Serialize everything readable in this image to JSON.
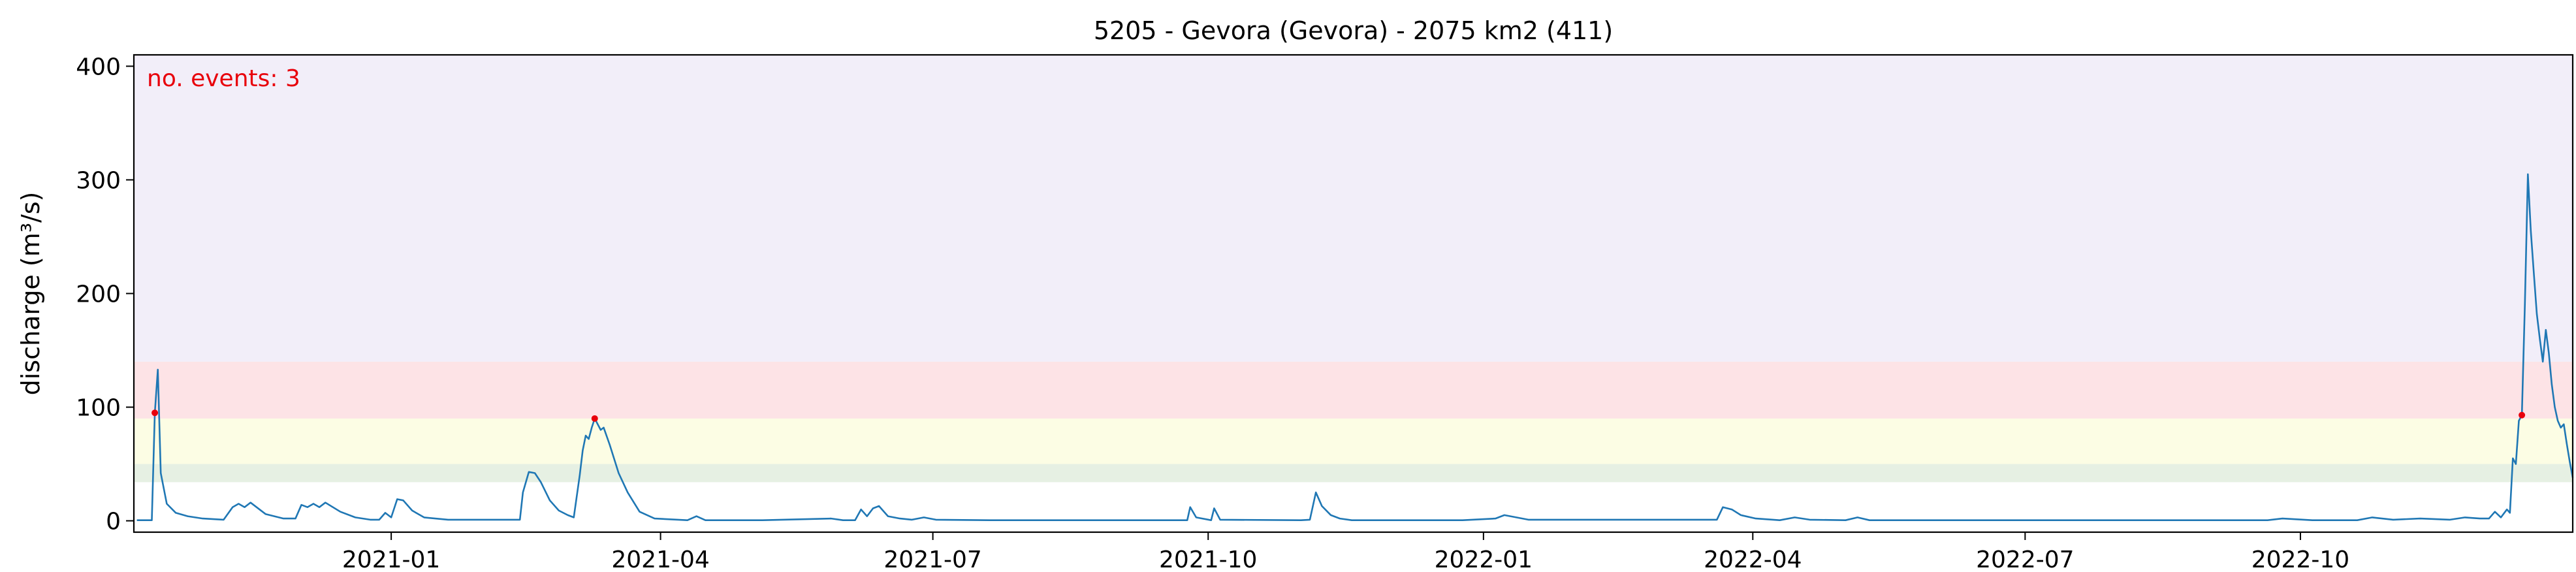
{
  "chart_data": {
    "type": "line",
    "title": "5205 - Gevora (Gevora) - 2075 km2 (411)",
    "xlabel": "",
    "ylabel": "discharge (m³/s)",
    "xlim": [
      "2020-10-07",
      "2022-12-31"
    ],
    "ylim": [
      -10,
      410
    ],
    "y_ticks": [
      0,
      100,
      200,
      300,
      400
    ],
    "x_ticks": [
      "2021-01-01",
      "2021-04-01",
      "2021-07-01",
      "2021-10-01",
      "2022-01-01",
      "2022-04-01",
      "2022-07-01",
      "2022-10-01"
    ],
    "x_tick_labels": [
      "2021-01",
      "2021-04",
      "2021-07",
      "2021-10",
      "2022-01",
      "2022-04",
      "2022-07",
      "2022-10"
    ],
    "grid": false,
    "threshold_bands": [
      {
        "from": 34,
        "to": 50,
        "color": "#e6f0e3"
      },
      {
        "from": 50,
        "to": 90,
        "color": "#fcfde4"
      },
      {
        "from": 90,
        "to": 140,
        "color": "#fde3e6"
      },
      {
        "from": 140,
        "to": 410,
        "color": "#f2eef9"
      }
    ],
    "annotation": {
      "text": "no. events: 3",
      "color": "#e8000b"
    },
    "series": [
      {
        "color": "#1f77b4",
        "points": [
          [
            "2020-10-08",
            0.5
          ],
          [
            "2020-10-13",
            0.5
          ],
          [
            "2020-10-14",
            95
          ],
          [
            "2020-10-15",
            133
          ],
          [
            "2020-10-16",
            42
          ],
          [
            "2020-10-18",
            15
          ],
          [
            "2020-10-21",
            7
          ],
          [
            "2020-10-25",
            4
          ],
          [
            "2020-10-30",
            2
          ],
          [
            "2020-11-06",
            1
          ],
          [
            "2020-11-09",
            12
          ],
          [
            "2020-11-11",
            15
          ],
          [
            "2020-11-13",
            12
          ],
          [
            "2020-11-15",
            16
          ],
          [
            "2020-11-20",
            6
          ],
          [
            "2020-11-26",
            2
          ],
          [
            "2020-11-30",
            2
          ],
          [
            "2020-12-02",
            14
          ],
          [
            "2020-12-04",
            12
          ],
          [
            "2020-12-06",
            15
          ],
          [
            "2020-12-08",
            12
          ],
          [
            "2020-12-10",
            16
          ],
          [
            "2020-12-15",
            8
          ],
          [
            "2020-12-20",
            3
          ],
          [
            "2020-12-25",
            1
          ],
          [
            "2020-12-28",
            1
          ],
          [
            "2020-12-30",
            7
          ],
          [
            "2021-01-01",
            3
          ],
          [
            "2021-01-03",
            19
          ],
          [
            "2021-01-05",
            18
          ],
          [
            "2021-01-08",
            9
          ],
          [
            "2021-01-12",
            3
          ],
          [
            "2021-01-20",
            1
          ],
          [
            "2021-01-28",
            1
          ],
          [
            "2021-02-07",
            1
          ],
          [
            "2021-02-13",
            1
          ],
          [
            "2021-02-14",
            25
          ],
          [
            "2021-02-16",
            43
          ],
          [
            "2021-02-18",
            42
          ],
          [
            "2021-02-20",
            34
          ],
          [
            "2021-02-23",
            18
          ],
          [
            "2021-02-26",
            9
          ],
          [
            "2021-03-01",
            5
          ],
          [
            "2021-03-03",
            3
          ],
          [
            "2021-03-05",
            40
          ],
          [
            "2021-03-06",
            62
          ],
          [
            "2021-03-07",
            75
          ],
          [
            "2021-03-08",
            72
          ],
          [
            "2021-03-09",
            82
          ],
          [
            "2021-03-10",
            90
          ],
          [
            "2021-03-12",
            80
          ],
          [
            "2021-03-13",
            82
          ],
          [
            "2021-03-15",
            67
          ],
          [
            "2021-03-18",
            42
          ],
          [
            "2021-03-21",
            25
          ],
          [
            "2021-03-25",
            8
          ],
          [
            "2021-03-30",
            2
          ],
          [
            "2021-04-10",
            0.5
          ],
          [
            "2021-04-13",
            4
          ],
          [
            "2021-04-16",
            0.5
          ],
          [
            "2021-04-24",
            0.5
          ],
          [
            "2021-05-05",
            0.5
          ],
          [
            "2021-05-28",
            2
          ],
          [
            "2021-06-01",
            0.5
          ],
          [
            "2021-06-05",
            0.5
          ],
          [
            "2021-06-07",
            10
          ],
          [
            "2021-06-09",
            4
          ],
          [
            "2021-06-11",
            11
          ],
          [
            "2021-06-13",
            13
          ],
          [
            "2021-06-16",
            4
          ],
          [
            "2021-06-20",
            2
          ],
          [
            "2021-06-24",
            1
          ],
          [
            "2021-06-28",
            3
          ],
          [
            "2021-07-02",
            1
          ],
          [
            "2021-07-20",
            0.5
          ],
          [
            "2021-09-20",
            0.5
          ],
          [
            "2021-09-24",
            0.5
          ],
          [
            "2021-09-25",
            12
          ],
          [
            "2021-09-27",
            3
          ],
          [
            "2021-10-02",
            0.5
          ],
          [
            "2021-10-03",
            11
          ],
          [
            "2021-10-05",
            1
          ],
          [
            "2021-11-01",
            0.5
          ],
          [
            "2021-11-04",
            1
          ],
          [
            "2021-11-06",
            25
          ],
          [
            "2021-11-08",
            13
          ],
          [
            "2021-11-11",
            5
          ],
          [
            "2021-11-14",
            2
          ],
          [
            "2021-11-18",
            0.5
          ],
          [
            "2021-12-25",
            0.5
          ],
          [
            "2022-01-05",
            2
          ],
          [
            "2022-01-08",
            5
          ],
          [
            "2022-01-12",
            3
          ],
          [
            "2022-01-16",
            1
          ],
          [
            "2022-03-15",
            1
          ],
          [
            "2022-03-20",
            1
          ],
          [
            "2022-03-22",
            12
          ],
          [
            "2022-03-25",
            10
          ],
          [
            "2022-03-28",
            5
          ],
          [
            "2022-04-02",
            2
          ],
          [
            "2022-04-10",
            0.5
          ],
          [
            "2022-04-15",
            3
          ],
          [
            "2022-04-20",
            1
          ],
          [
            "2022-05-02",
            0.5
          ],
          [
            "2022-05-06",
            3
          ],
          [
            "2022-05-10",
            0.5
          ],
          [
            "2022-09-20",
            0.5
          ],
          [
            "2022-09-25",
            2
          ],
          [
            "2022-10-05",
            0.5
          ],
          [
            "2022-10-20",
            0.5
          ],
          [
            "2022-10-25",
            3
          ],
          [
            "2022-11-01",
            1
          ],
          [
            "2022-11-10",
            2
          ],
          [
            "2022-11-20",
            1
          ],
          [
            "2022-11-25",
            3
          ],
          [
            "2022-11-30",
            2
          ],
          [
            "2022-12-03",
            2
          ],
          [
            "2022-12-05",
            8
          ],
          [
            "2022-12-07",
            3
          ],
          [
            "2022-12-09",
            10
          ],
          [
            "2022-12-10",
            7
          ],
          [
            "2022-12-11",
            55
          ],
          [
            "2022-12-12",
            50
          ],
          [
            "2022-12-13",
            88
          ],
          [
            "2022-12-14",
            93
          ],
          [
            "2022-12-15",
            190
          ],
          [
            "2022-12-16",
            305
          ],
          [
            "2022-12-17",
            255
          ],
          [
            "2022-12-18",
            218
          ],
          [
            "2022-12-19",
            182
          ],
          [
            "2022-12-20",
            160
          ],
          [
            "2022-12-21",
            140
          ],
          [
            "2022-12-22",
            168
          ],
          [
            "2022-12-23",
            148
          ],
          [
            "2022-12-24",
            120
          ],
          [
            "2022-12-25",
            100
          ],
          [
            "2022-12-26",
            88
          ],
          [
            "2022-12-27",
            82
          ],
          [
            "2022-12-28",
            85
          ],
          [
            "2022-12-29",
            68
          ],
          [
            "2022-12-30",
            52
          ],
          [
            "2022-12-31",
            38
          ]
        ]
      }
    ],
    "events": [
      {
        "date": "2020-10-14",
        "value": 95,
        "color": "#e8000b"
      },
      {
        "date": "2021-03-10",
        "value": 90,
        "color": "#e8000b"
      },
      {
        "date": "2022-12-14",
        "value": 93,
        "color": "#e8000b"
      }
    ]
  }
}
